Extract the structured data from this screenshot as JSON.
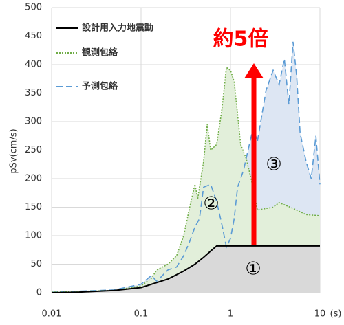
{
  "chart_data": {
    "type": "line",
    "x_scale": "log",
    "grid": true,
    "ylabel": "pSv(cm/s)",
    "xunit": "(s)",
    "xlim": [
      0.01,
      10
    ],
    "xticks": [
      0.01,
      0.1,
      1,
      10
    ],
    "ylim": [
      0,
      500
    ],
    "yticks": [
      0,
      50,
      100,
      150,
      200,
      250,
      300,
      350,
      400,
      450,
      500
    ],
    "legend": "upper left",
    "series": [
      {
        "name": "予測包絡",
        "color": "#5b9bd5",
        "fill": "#dde6f3",
        "style": "dashed",
        "x": [
          0.01,
          0.05,
          0.1,
          0.13,
          0.15,
          0.2,
          0.25,
          0.3,
          0.35,
          0.4,
          0.45,
          0.5,
          0.6,
          0.7,
          0.8,
          0.9,
          1.0,
          1.1,
          1.2,
          1.4,
          1.6,
          1.8,
          2,
          2.5,
          3,
          3.5,
          4,
          4.5,
          5,
          5.5,
          6,
          7,
          8,
          9,
          10
        ],
        "values": [
          1,
          5,
          15,
          30,
          20,
          40,
          45,
          65,
          90,
          115,
          130,
          185,
          190,
          160,
          120,
          80,
          95,
          130,
          185,
          215,
          255,
          290,
          265,
          355,
          390,
          365,
          410,
          330,
          440,
          380,
          280,
          230,
          200,
          275,
          190
        ]
      },
      {
        "name": "観測包絡",
        "color": "#70ad47",
        "fill": "#e2efda",
        "style": "dotted",
        "x": [
          0.01,
          0.05,
          0.1,
          0.13,
          0.15,
          0.2,
          0.25,
          0.3,
          0.35,
          0.4,
          0.43,
          0.5,
          0.55,
          0.6,
          0.7,
          0.8,
          0.9,
          1.0,
          1.1,
          1.3,
          1.5,
          1.7,
          2,
          3,
          3.5,
          5,
          7,
          10
        ],
        "values": [
          1,
          4,
          12,
          25,
          40,
          50,
          65,
          100,
          150,
          190,
          165,
          230,
          295,
          250,
          260,
          320,
          395,
          390,
          370,
          260,
          235,
          200,
          145,
          150,
          158,
          148,
          137,
          135
        ]
      },
      {
        "name": "設計用入力地震動",
        "color": "#000000",
        "fill": "#d9d9d9",
        "style": "solid",
        "x": [
          0.01,
          0.02,
          0.05,
          0.1,
          0.2,
          0.3,
          0.4,
          0.5,
          0.6,
          0.7,
          1,
          2,
          5,
          10
        ],
        "values": [
          0,
          1,
          4,
          9,
          24,
          38,
          50,
          62,
          73,
          82,
          82,
          82,
          82,
          82
        ]
      }
    ],
    "annotations": [
      "約5倍",
      "①",
      "②",
      "③"
    ],
    "annotation_color": "#ff0000"
  }
}
